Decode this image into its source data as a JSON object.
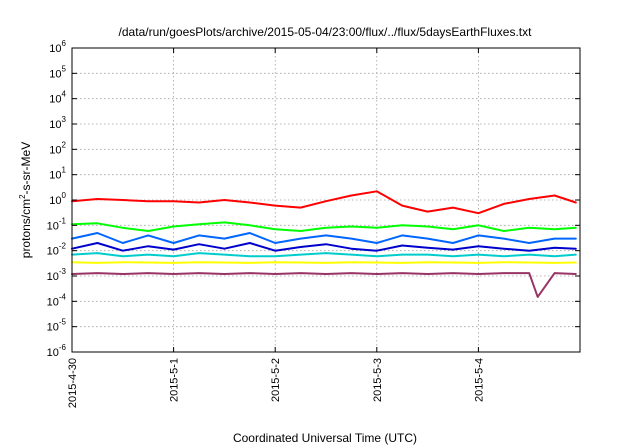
{
  "chart_data": {
    "type": "line",
    "title": "/data/run/goesPlots/archive/2015-05-04/23:00/flux/../flux/5daysEarthFluxes.txt",
    "xlabel": "Coordinated Universal Time (UTC)",
    "ylabel": {
      "base": "protons/cm",
      "sup": "2",
      "rest": "-s-sr-MeV"
    },
    "y_scale": "log",
    "ylim": [
      1e-06,
      1000000.0
    ],
    "y_ticks": [
      {
        "value": 1000000.0,
        "base": "10",
        "exp": "6"
      },
      {
        "value": 100000.0,
        "base": "10",
        "exp": "5"
      },
      {
        "value": 10000.0,
        "base": "10",
        "exp": "4"
      },
      {
        "value": 1000.0,
        "base": "10",
        "exp": "3"
      },
      {
        "value": 100.0,
        "base": "10",
        "exp": "2"
      },
      {
        "value": 10.0,
        "base": "10",
        "exp": "1"
      },
      {
        "value": 1.0,
        "base": "10",
        "exp": "0"
      },
      {
        "value": 0.1,
        "base": "10",
        "exp": "-1"
      },
      {
        "value": 0.01,
        "base": "10",
        "exp": "-2"
      },
      {
        "value": 0.001,
        "base": "10",
        "exp": "-3"
      },
      {
        "value": 0.0001,
        "base": "10",
        "exp": "-4"
      },
      {
        "value": 1e-05,
        "base": "10",
        "exp": "-5"
      },
      {
        "value": 1e-06,
        "base": "10",
        "exp": "-6"
      }
    ],
    "x_ticks": [
      {
        "value": "2015-04-30",
        "label": "2015-4-30"
      },
      {
        "value": "2015-05-01",
        "label": "2015-5-1"
      },
      {
        "value": "2015-05-02",
        "label": "2015-5-2"
      },
      {
        "value": "2015-05-03",
        "label": "2015-5-3"
      },
      {
        "value": "2015-05-04",
        "label": "2015-5-4"
      }
    ],
    "xlim": [
      "2015-04-30",
      "2015-05-05"
    ],
    "grid": true,
    "legend": "none",
    "series": [
      {
        "color": "#ff0000",
        "x": [
          "2015-04-30 00:00",
          "2015-04-30 06:00",
          "2015-04-30 12:00",
          "2015-04-30 18:00",
          "2015-05-01 00:00",
          "2015-05-01 06:00",
          "2015-05-01 12:00",
          "2015-05-01 18:00",
          "2015-05-02 00:00",
          "2015-05-02 06:00",
          "2015-05-02 12:00",
          "2015-05-02 18:00",
          "2015-05-03 00:00",
          "2015-05-03 06:00",
          "2015-05-03 12:00",
          "2015-05-03 18:00",
          "2015-05-04 00:00",
          "2015-05-04 06:00",
          "2015-05-04 12:00",
          "2015-05-04 18:00",
          "2015-05-04 23:00"
        ],
        "y": [
          0.9,
          1.1,
          1.0,
          0.9,
          0.9,
          0.8,
          1.0,
          0.8,
          0.6,
          0.5,
          0.9,
          1.5,
          2.2,
          0.6,
          0.35,
          0.5,
          0.3,
          0.7,
          1.1,
          1.5,
          0.8
        ]
      },
      {
        "color": "#00ff00",
        "x": [
          "2015-04-30 00:00",
          "2015-04-30 06:00",
          "2015-04-30 12:00",
          "2015-04-30 18:00",
          "2015-05-01 00:00",
          "2015-05-01 06:00",
          "2015-05-01 12:00",
          "2015-05-01 18:00",
          "2015-05-02 00:00",
          "2015-05-02 06:00",
          "2015-05-02 12:00",
          "2015-05-02 18:00",
          "2015-05-03 00:00",
          "2015-05-03 06:00",
          "2015-05-03 12:00",
          "2015-05-03 18:00",
          "2015-05-04 00:00",
          "2015-05-04 06:00",
          "2015-05-04 12:00",
          "2015-05-04 18:00",
          "2015-05-04 23:00"
        ],
        "y": [
          0.11,
          0.12,
          0.08,
          0.06,
          0.09,
          0.11,
          0.13,
          0.1,
          0.07,
          0.06,
          0.08,
          0.09,
          0.08,
          0.1,
          0.09,
          0.07,
          0.1,
          0.06,
          0.08,
          0.07,
          0.08
        ]
      },
      {
        "color": "#0066ff",
        "x": [
          "2015-04-30 00:00",
          "2015-04-30 06:00",
          "2015-04-30 12:00",
          "2015-04-30 18:00",
          "2015-05-01 00:00",
          "2015-05-01 06:00",
          "2015-05-01 12:00",
          "2015-05-01 18:00",
          "2015-05-02 00:00",
          "2015-05-02 06:00",
          "2015-05-02 12:00",
          "2015-05-02 18:00",
          "2015-05-03 00:00",
          "2015-05-03 06:00",
          "2015-05-03 12:00",
          "2015-05-03 18:00",
          "2015-05-04 00:00",
          "2015-05-04 06:00",
          "2015-05-04 12:00",
          "2015-05-04 18:00",
          "2015-05-04 23:00"
        ],
        "y": [
          0.03,
          0.05,
          0.02,
          0.04,
          0.02,
          0.04,
          0.03,
          0.05,
          0.02,
          0.03,
          0.04,
          0.03,
          0.02,
          0.04,
          0.03,
          0.02,
          0.04,
          0.03,
          0.02,
          0.03,
          0.03
        ]
      },
      {
        "color": "#0000cc",
        "x": [
          "2015-04-30 00:00",
          "2015-04-30 06:00",
          "2015-04-30 12:00",
          "2015-04-30 18:00",
          "2015-05-01 00:00",
          "2015-05-01 06:00",
          "2015-05-01 12:00",
          "2015-05-01 18:00",
          "2015-05-02 00:00",
          "2015-05-02 06:00",
          "2015-05-02 12:00",
          "2015-05-02 18:00",
          "2015-05-03 00:00",
          "2015-05-03 06:00",
          "2015-05-03 12:00",
          "2015-05-03 18:00",
          "2015-05-04 00:00",
          "2015-05-04 06:00",
          "2015-05-04 12:00",
          "2015-05-04 18:00",
          "2015-05-04 23:00"
        ],
        "y": [
          0.012,
          0.02,
          0.01,
          0.015,
          0.011,
          0.018,
          0.012,
          0.02,
          0.01,
          0.014,
          0.018,
          0.012,
          0.01,
          0.016,
          0.013,
          0.011,
          0.015,
          0.012,
          0.01,
          0.013,
          0.012
        ]
      },
      {
        "color": "#00cccc",
        "x": [
          "2015-04-30 00:00",
          "2015-04-30 06:00",
          "2015-04-30 12:00",
          "2015-04-30 18:00",
          "2015-05-01 00:00",
          "2015-05-01 06:00",
          "2015-05-01 12:00",
          "2015-05-01 18:00",
          "2015-05-02 00:00",
          "2015-05-02 06:00",
          "2015-05-02 12:00",
          "2015-05-02 18:00",
          "2015-05-03 00:00",
          "2015-05-03 06:00",
          "2015-05-03 12:00",
          "2015-05-03 18:00",
          "2015-05-04 00:00",
          "2015-05-04 06:00",
          "2015-05-04 12:00",
          "2015-05-04 18:00",
          "2015-05-04 23:00"
        ],
        "y": [
          0.007,
          0.008,
          0.006,
          0.007,
          0.006,
          0.008,
          0.007,
          0.006,
          0.006,
          0.007,
          0.008,
          0.007,
          0.006,
          0.007,
          0.007,
          0.006,
          0.007,
          0.006,
          0.007,
          0.006,
          0.007
        ]
      },
      {
        "color": "#ffff00",
        "x": [
          "2015-04-30 00:00",
          "2015-04-30 06:00",
          "2015-04-30 12:00",
          "2015-04-30 18:00",
          "2015-05-01 00:00",
          "2015-05-01 06:00",
          "2015-05-01 12:00",
          "2015-05-01 18:00",
          "2015-05-02 00:00",
          "2015-05-02 06:00",
          "2015-05-02 12:00",
          "2015-05-02 18:00",
          "2015-05-03 00:00",
          "2015-05-03 06:00",
          "2015-05-03 12:00",
          "2015-05-03 18:00",
          "2015-05-04 00:00",
          "2015-05-04 06:00",
          "2015-05-04 12:00",
          "2015-05-04 18:00",
          "2015-05-04 23:00"
        ],
        "y": [
          0.0035,
          0.0033,
          0.0035,
          0.0034,
          0.0033,
          0.0035,
          0.0034,
          0.0033,
          0.0035,
          0.0034,
          0.0033,
          0.0035,
          0.0034,
          0.0033,
          0.0035,
          0.0034,
          0.0033,
          0.0035,
          0.0034,
          0.0033,
          0.0034
        ]
      },
      {
        "color": "#993366",
        "x": [
          "2015-04-30 00:00",
          "2015-04-30 06:00",
          "2015-04-30 12:00",
          "2015-04-30 18:00",
          "2015-05-01 00:00",
          "2015-05-01 06:00",
          "2015-05-01 12:00",
          "2015-05-01 18:00",
          "2015-05-02 00:00",
          "2015-05-02 06:00",
          "2015-05-02 12:00",
          "2015-05-02 18:00",
          "2015-05-03 00:00",
          "2015-05-03 06:00",
          "2015-05-03 12:00",
          "2015-05-03 18:00",
          "2015-05-04 00:00",
          "2015-05-04 06:00",
          "2015-05-04 12:00",
          "2015-05-04 14:00",
          "2015-05-04 18:00",
          "2015-05-04 23:00"
        ],
        "y": [
          0.0012,
          0.0013,
          0.0012,
          0.0013,
          0.0012,
          0.0013,
          0.0012,
          0.0013,
          0.0012,
          0.0013,
          0.0012,
          0.0013,
          0.0012,
          0.0013,
          0.0012,
          0.0013,
          0.0012,
          0.0013,
          0.0013,
          0.00015,
          0.0013,
          0.0012
        ]
      }
    ]
  }
}
